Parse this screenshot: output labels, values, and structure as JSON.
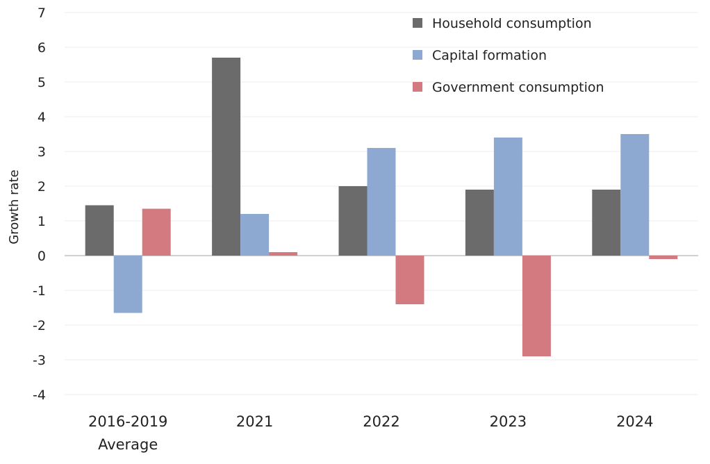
{
  "chart_data": {
    "type": "bar",
    "title": "",
    "xlabel": "",
    "ylabel": "Growth rate",
    "ylim": [
      -4,
      7
    ],
    "yticks": [
      -4,
      -3,
      -2,
      -1,
      0,
      1,
      2,
      3,
      4,
      5,
      6,
      7
    ],
    "grid": true,
    "legend_position": "top-right",
    "categories": [
      [
        "2016-2019",
        "Average"
      ],
      [
        "2021"
      ],
      [
        "2022"
      ],
      [
        "2023"
      ],
      [
        "2024"
      ]
    ],
    "series": [
      {
        "name": "Household consumption",
        "color": "#6b6b6b",
        "values": [
          1.45,
          5.7,
          2.0,
          1.9,
          1.9
        ]
      },
      {
        "name": "Capital formation",
        "color": "#8ea9d1",
        "values": [
          -1.65,
          1.2,
          3.1,
          3.4,
          3.5
        ]
      },
      {
        "name": "Government consumption",
        "color": "#d27a80",
        "values": [
          1.35,
          0.1,
          -1.4,
          -2.9,
          -0.1
        ]
      }
    ]
  }
}
